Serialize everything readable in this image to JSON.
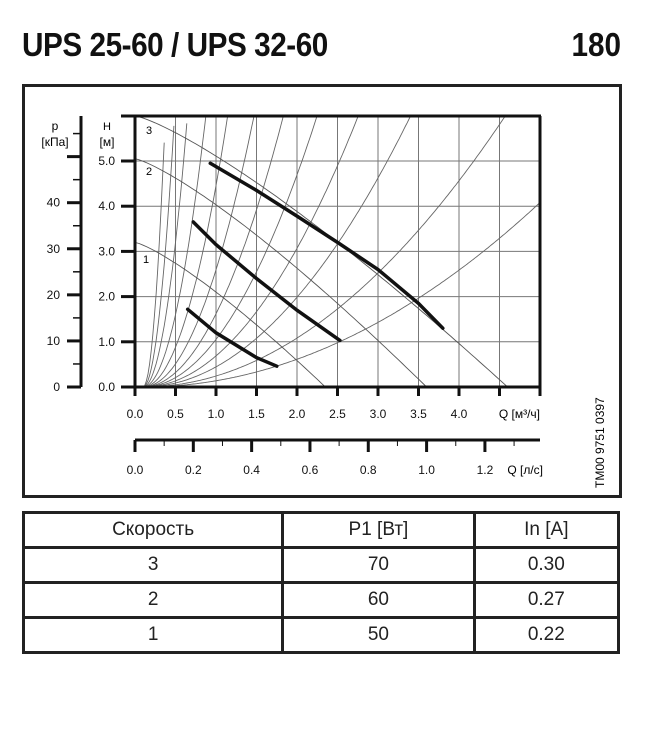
{
  "header": {
    "title": "UPS 25-60 / UPS 32-60",
    "page_number": "180"
  },
  "chart": {
    "doc_code": "TM00 9751 0397",
    "pressure_axis": {
      "label_line1": "p",
      "label_line2": "[кПа]",
      "ticks": [
        "0",
        "10",
        "20",
        "30",
        "40"
      ]
    },
    "head_axis": {
      "label_line1": "H",
      "label_line2": "[м]",
      "ticks": [
        "0.0",
        "1.0",
        "2.0",
        "3.0",
        "4.0",
        "5.0"
      ]
    },
    "flow_m3h_axis": {
      "label": "Q [м³/ч]",
      "ticks": [
        "0.0",
        "0.5",
        "1.0",
        "1.5",
        "2.0",
        "2.5",
        "3.0",
        "3.5",
        "4.0"
      ]
    },
    "flow_ls_axis": {
      "label": "Q [л/с]",
      "ticks": [
        "0.0",
        "0.2",
        "0.4",
        "0.6",
        "0.8",
        "1.0",
        "1.2"
      ]
    },
    "curve_labels": [
      "3",
      "2",
      "1"
    ]
  },
  "chart_data": {
    "type": "line",
    "title": "UPS 25-60 / UPS 32-60",
    "xlabel": "Q [м³/ч]",
    "ylabel": "H [м]",
    "secondary_xlabel": "Q [л/с]",
    "secondary_ylabel": "p [кПа]",
    "xlim": [
      0,
      5.0
    ],
    "ylim": [
      0,
      6.0
    ],
    "x_ticks": [
      0.0,
      0.5,
      1.0,
      1.5,
      2.0,
      2.5,
      3.0,
      3.5,
      4.0
    ],
    "y_ticks": [
      0.0,
      1.0,
      2.0,
      3.0,
      4.0,
      5.0
    ],
    "secondary_x_ticks": [
      0.0,
      0.2,
      0.4,
      0.6,
      0.8,
      1.0,
      1.2
    ],
    "secondary_y_ticks": [
      0,
      10,
      20,
      30,
      40
    ],
    "grid": true,
    "series": [
      {
        "name": "3",
        "x": [
          0.93,
          1.5,
          2.0,
          2.5,
          3.0,
          3.5,
          3.8
        ],
        "y": [
          4.95,
          4.35,
          3.78,
          3.2,
          2.6,
          1.85,
          1.3
        ]
      },
      {
        "name": "2",
        "x": [
          0.72,
          1.0,
          1.5,
          2.0,
          2.53
        ],
        "y": [
          3.65,
          3.15,
          2.4,
          1.7,
          1.03
        ]
      },
      {
        "name": "1",
        "x": [
          0.65,
          1.0,
          1.5,
          1.75
        ],
        "y": [
          1.72,
          1.2,
          0.65,
          0.46
        ]
      }
    ]
  },
  "table": {
    "headers": [
      "Скорость",
      "P1 [Вт]",
      "In [A]"
    ],
    "rows": [
      [
        "3",
        "70",
        "0.30"
      ],
      [
        "2",
        "60",
        "0.27"
      ],
      [
        "1",
        "50",
        "0.22"
      ]
    ]
  }
}
